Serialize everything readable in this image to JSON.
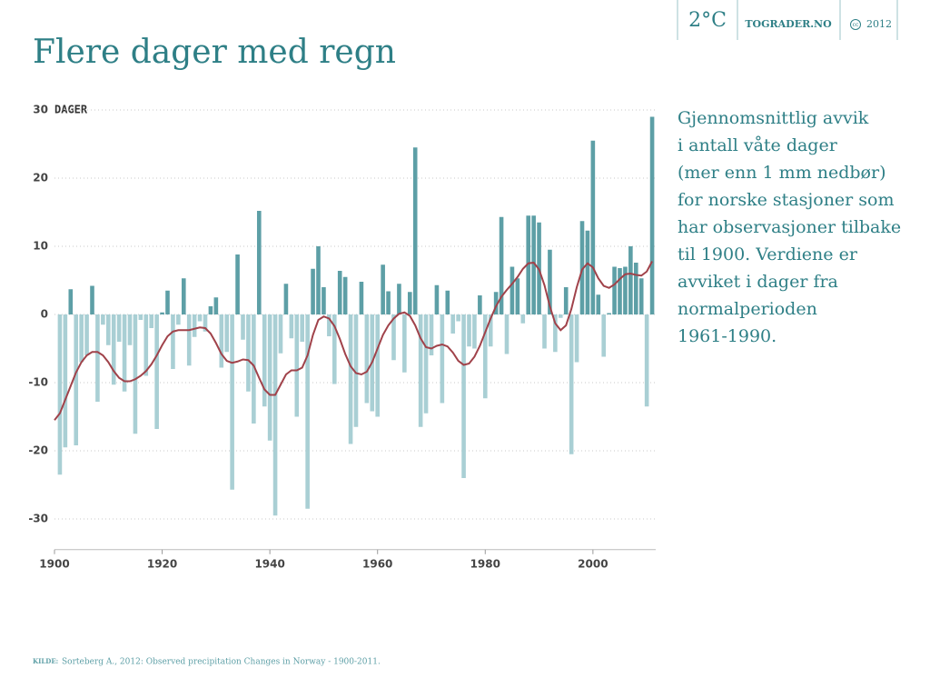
{
  "header": {
    "logo": "2°C",
    "site": "TOGRADER.NO",
    "license_icon": "cc",
    "year": "2012"
  },
  "chart_data": {
    "type": "bar",
    "title": "Flere dager med regn",
    "y_label": "DAGER",
    "description": [
      "Gjennomsnittlig avvik",
      "i antall våte dager",
      "(mer enn 1 mm nedbør)",
      "for norske stasjoner som",
      "har observasjoner tilbake",
      "til 1900. Verdiene er",
      "avviket i dager fra",
      "normalperioden",
      "1961-1990."
    ],
    "source_label": "KILDE:",
    "source": "Sorteberg A., 2012: Observed precipitation Changes in Norway - 1900-2011.",
    "x": [
      1900,
      1901,
      1902,
      1903,
      1904,
      1905,
      1906,
      1907,
      1908,
      1909,
      1910,
      1911,
      1912,
      1913,
      1914,
      1915,
      1916,
      1917,
      1918,
      1919,
      1920,
      1921,
      1922,
      1923,
      1924,
      1925,
      1926,
      1927,
      1928,
      1929,
      1930,
      1931,
      1932,
      1933,
      1934,
      1935,
      1936,
      1937,
      1938,
      1939,
      1940,
      1941,
      1942,
      1943,
      1944,
      1945,
      1946,
      1947,
      1948,
      1949,
      1950,
      1951,
      1952,
      1953,
      1954,
      1955,
      1956,
      1957,
      1958,
      1959,
      1960,
      1961,
      1962,
      1963,
      1964,
      1965,
      1966,
      1967,
      1968,
      1969,
      1970,
      1971,
      1972,
      1973,
      1974,
      1975,
      1976,
      1977,
      1978,
      1979,
      1980,
      1981,
      1982,
      1983,
      1984,
      1985,
      1986,
      1987,
      1988,
      1989,
      1990,
      1991,
      1992,
      1993,
      1994,
      1995,
      1996,
      1997,
      1998,
      1999,
      2000,
      2001,
      2002,
      2003,
      2004,
      2005,
      2006,
      2007,
      2008,
      2009,
      2010,
      2011
    ],
    "series": [
      {
        "type": "bar",
        "color": "#5d9fa6",
        "negative_color": "#a9cfd4",
        "values": [
          null,
          -23.5,
          -19.5,
          3.7,
          -19.2,
          -7,
          -6,
          4.2,
          -12.8,
          -1.5,
          -4.5,
          -10.3,
          -4,
          -11.3,
          -4.5,
          -17.5,
          -0.8,
          -9,
          -2,
          -16.8,
          0.3,
          3.5,
          -8,
          -1.5,
          5.3,
          -7.5,
          -3.3,
          -1,
          -2.5,
          1.2,
          2.5,
          -7.8,
          -5.5,
          -25.7,
          8.8,
          -3.7,
          -11.3,
          -16,
          15.2,
          -13.5,
          -18.5,
          -29.5,
          -5.7,
          4.5,
          -3.5,
          -15,
          -4,
          -28.5,
          6.7,
          10,
          4,
          -3.2,
          -10.2,
          6.4,
          5.5,
          -19,
          -16.5,
          4.8,
          -13,
          -14.2,
          -15,
          7.3,
          3.4,
          -6.7,
          4.5,
          -8.5,
          3.3,
          24.5,
          -16.5,
          -14.5,
          -6,
          4.3,
          -13,
          3.5,
          -2.8,
          -1,
          -24,
          -4.7,
          -5,
          2.8,
          -12.3,
          -4.7,
          3.3,
          14.3,
          -5.8,
          7,
          5.3,
          -1.3,
          14.5,
          14.5,
          13.5,
          -5,
          9.5,
          -5.5,
          -0.5,
          4,
          -20.5,
          -7,
          13.7,
          12.3,
          25.5,
          2.9,
          -6.2,
          0.2,
          7,
          6.8,
          7,
          10,
          7.6,
          5.3,
          -13.5,
          29
        ]
      },
      {
        "type": "line",
        "color": "#a0424a",
        "values": [
          -15.5,
          -14.5,
          -12.5,
          -10.5,
          -8.5,
          -7,
          -6,
          -5.5,
          -5.5,
          -6,
          -7,
          -8.3,
          -9.3,
          -9.8,
          -9.8,
          -9.5,
          -9,
          -8.3,
          -7.3,
          -6,
          -4.5,
          -3.2,
          -2.5,
          -2.3,
          -2.3,
          -2.3,
          -2.1,
          -1.9,
          -2,
          -2.8,
          -4.2,
          -5.8,
          -6.8,
          -7.1,
          -6.9,
          -6.6,
          -6.7,
          -7.5,
          -9.3,
          -11,
          -11.8,
          -11.8,
          -10.3,
          -8.8,
          -8.2,
          -8.2,
          -7.8,
          -6,
          -3,
          -0.8,
          -0.3,
          -0.6,
          -1.7,
          -3.6,
          -5.8,
          -7.6,
          -8.6,
          -8.8,
          -8.4,
          -7,
          -5,
          -3,
          -1.6,
          -0.6,
          0.1,
          0.3,
          -0.2,
          -1.6,
          -3.5,
          -4.8,
          -5,
          -4.6,
          -4.4,
          -4.7,
          -5.6,
          -6.8,
          -7.4,
          -7.2,
          -6.2,
          -4.6,
          -2.6,
          -0.6,
          1.2,
          2.6,
          3.6,
          4.5,
          5.5,
          6.7,
          7.5,
          7.6,
          6.6,
          4.3,
          1.2,
          -1.3,
          -2.3,
          -1.6,
          0.8,
          4,
          6.6,
          7.5,
          6.9,
          5.3,
          4.2,
          3.9,
          4.4,
          5.2,
          5.9,
          6,
          5.8,
          5.7,
          6.3,
          7.8
        ]
      }
    ],
    "xlim": [
      1900,
      2012
    ],
    "xticks": [
      1900,
      1920,
      1940,
      1960,
      1980,
      2000
    ],
    "ylim": [
      -34.5,
      31
    ],
    "yticks": [
      -30,
      -20,
      -10,
      0,
      10,
      20,
      30
    ],
    "grid": true
  }
}
